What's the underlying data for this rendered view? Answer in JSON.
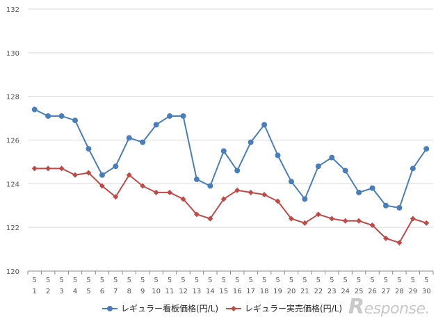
{
  "chart_data": {
    "type": "line",
    "ylim": [
      120,
      132
    ],
    "y_ticks": [
      "120",
      "122",
      "124",
      "126",
      "128",
      "130",
      "132"
    ],
    "categories": [
      {
        "month": "5",
        "day": "1"
      },
      {
        "month": "5",
        "day": "2"
      },
      {
        "month": "5",
        "day": "3"
      },
      {
        "month": "5",
        "day": "4"
      },
      {
        "month": "5",
        "day": "5"
      },
      {
        "month": "5",
        "day": "6"
      },
      {
        "month": "5",
        "day": "7"
      },
      {
        "month": "5",
        "day": "8"
      },
      {
        "month": "5",
        "day": "9"
      },
      {
        "month": "5",
        "day": "10"
      },
      {
        "month": "5",
        "day": "11"
      },
      {
        "month": "5",
        "day": "12"
      },
      {
        "month": "5",
        "day": "13"
      },
      {
        "month": "5",
        "day": "14"
      },
      {
        "month": "5",
        "day": "15"
      },
      {
        "month": "5",
        "day": "16"
      },
      {
        "month": "5",
        "day": "17"
      },
      {
        "month": "5",
        "day": "18"
      },
      {
        "month": "5",
        "day": "19"
      },
      {
        "month": "5",
        "day": "20"
      },
      {
        "month": "5",
        "day": "21"
      },
      {
        "month": "5",
        "day": "22"
      },
      {
        "month": "5",
        "day": "23"
      },
      {
        "month": "5",
        "day": "24"
      },
      {
        "month": "5",
        "day": "25"
      },
      {
        "month": "5",
        "day": "26"
      },
      {
        "month": "5",
        "day": "27"
      },
      {
        "month": "5",
        "day": "28"
      },
      {
        "month": "5",
        "day": "29"
      },
      {
        "month": "5",
        "day": "30"
      }
    ],
    "series": [
      {
        "name": "レギュラー看板価格(円/L)",
        "color": "#4a7ebb",
        "marker": "circle",
        "values": [
          127.4,
          127.1,
          127.1,
          126.9,
          125.6,
          124.4,
          124.8,
          126.1,
          125.9,
          126.7,
          127.1,
          127.1,
          124.2,
          123.9,
          125.5,
          124.6,
          125.9,
          126.7,
          125.3,
          124.1,
          123.3,
          124.8,
          125.2,
          124.6,
          123.6,
          123.8,
          123.0,
          122.9,
          124.7,
          125.6
        ]
      },
      {
        "name": "レギュラー実売価格(円/L)",
        "color": "#be4b48",
        "marker": "diamond",
        "values": [
          124.7,
          124.7,
          124.7,
          124.4,
          124.5,
          123.9,
          123.4,
          124.4,
          123.9,
          123.6,
          123.6,
          123.3,
          122.6,
          122.4,
          123.3,
          123.7,
          123.6,
          123.5,
          123.2,
          122.4,
          122.2,
          122.6,
          122.4,
          122.3,
          122.3,
          122.1,
          121.5,
          121.3,
          122.4,
          122.2
        ]
      }
    ],
    "grid": true,
    "legend_position": "bottom"
  },
  "watermark": {
    "r": "R",
    "rest": "esponse."
  }
}
